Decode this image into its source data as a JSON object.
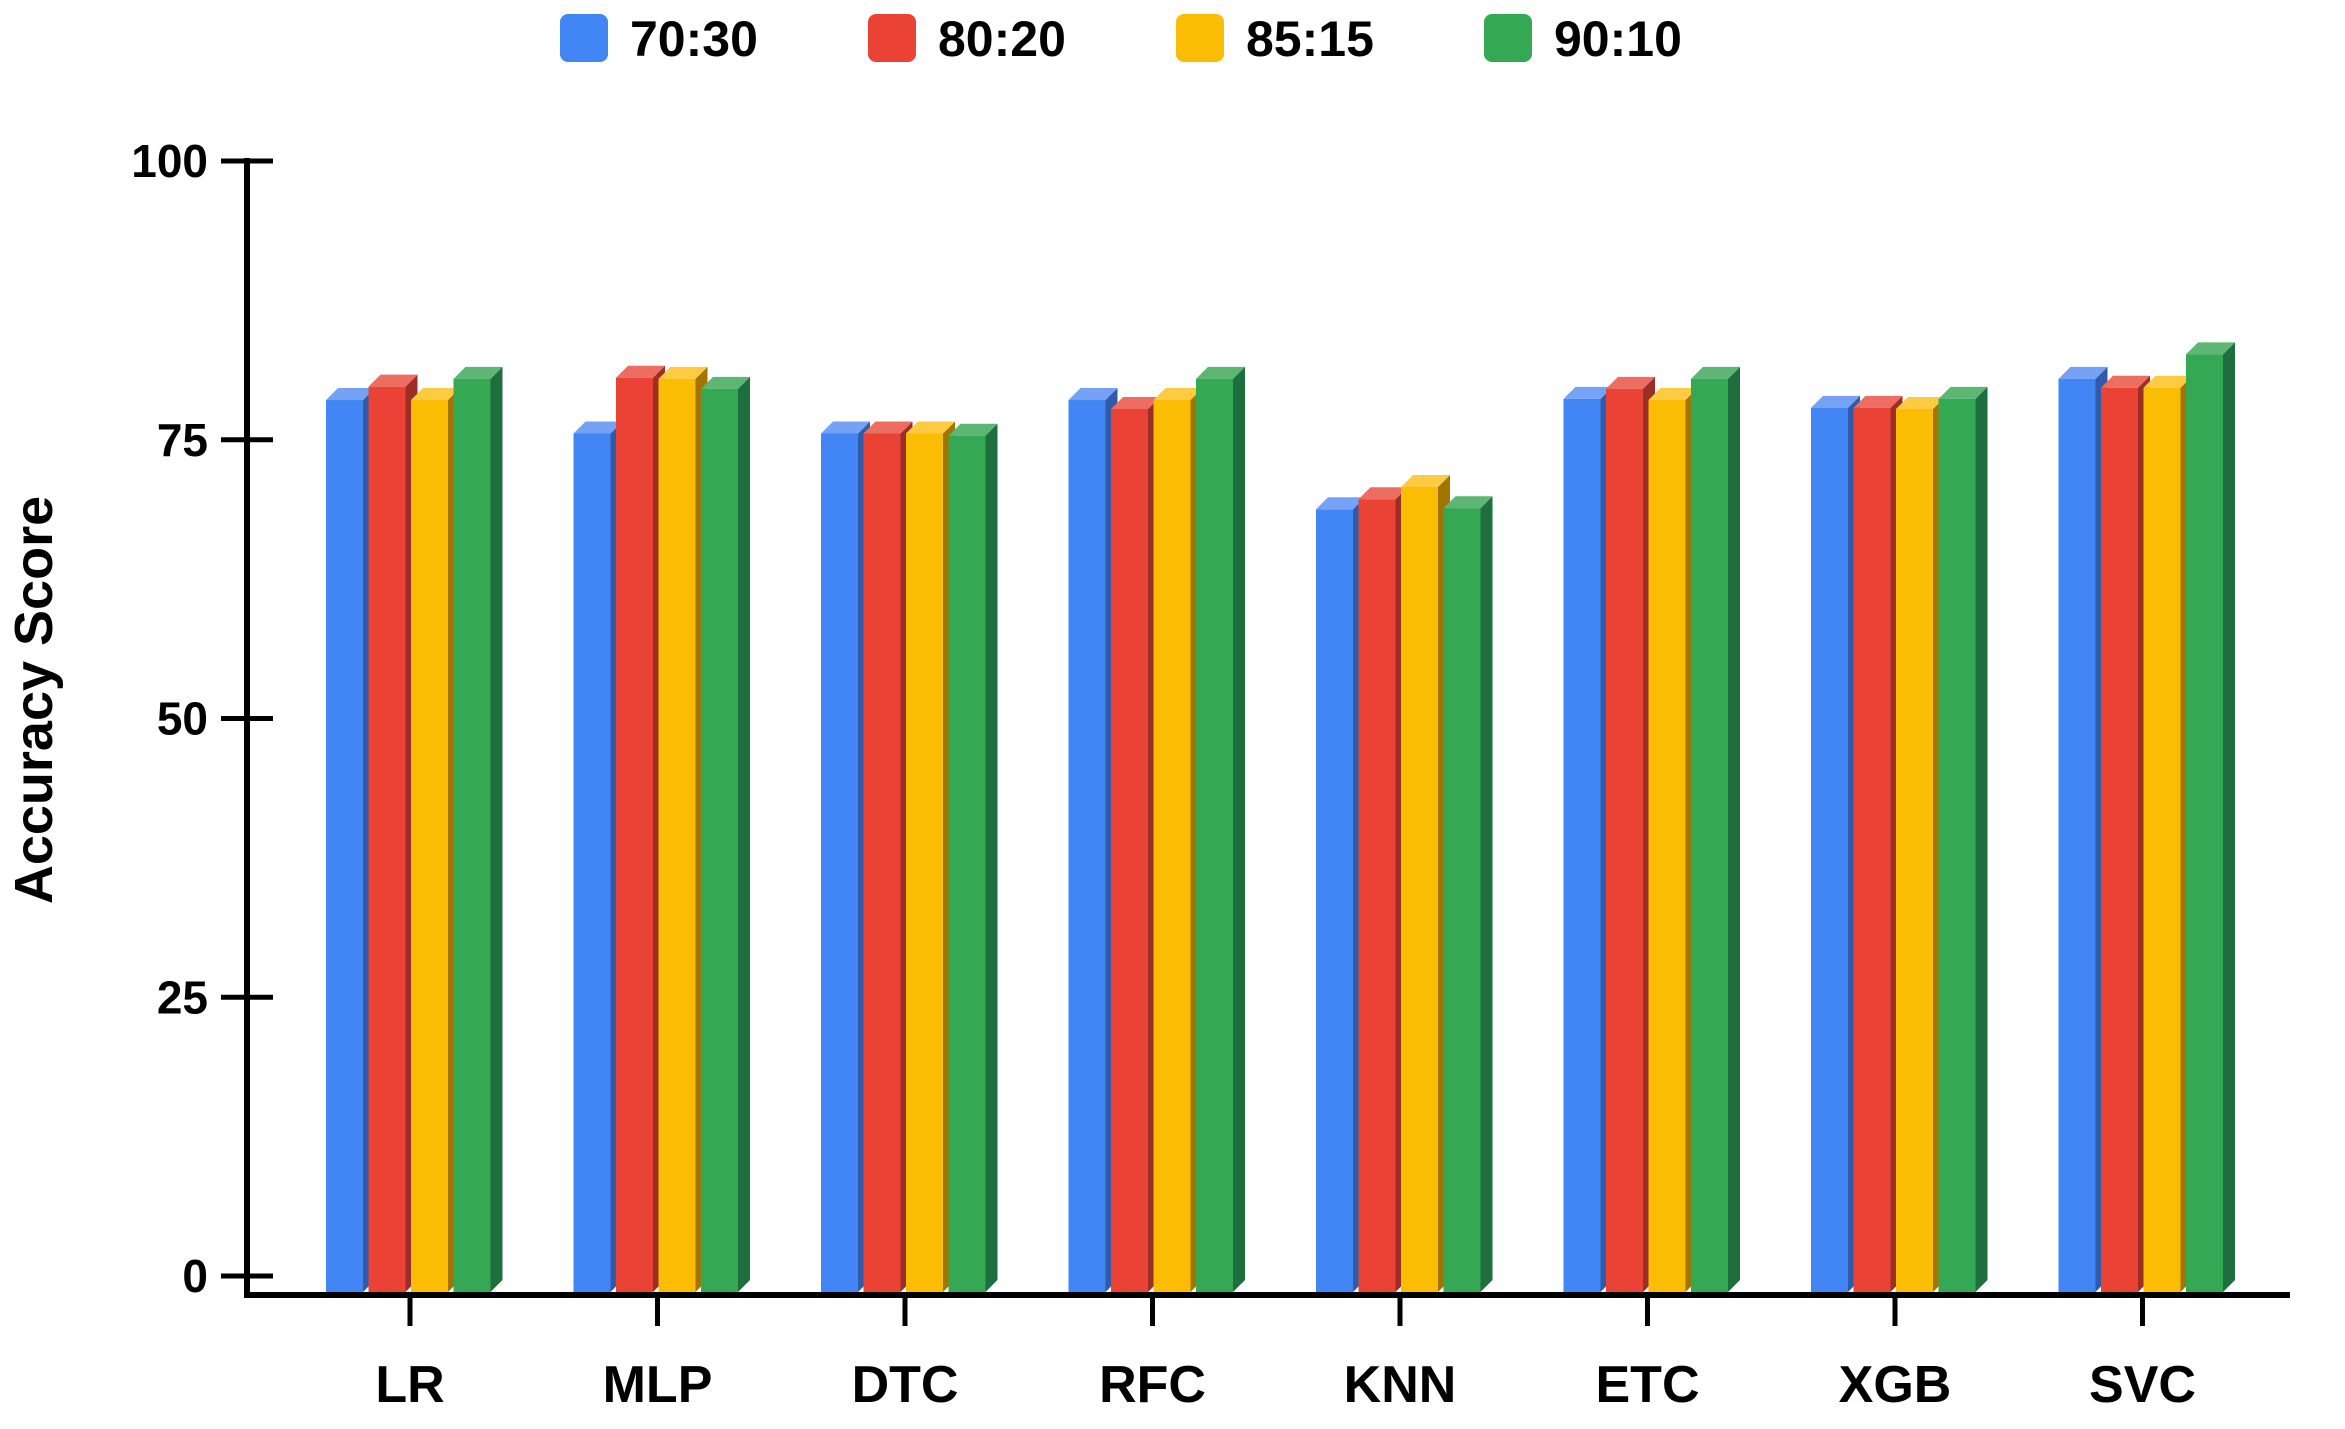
{
  "page": {
    "background": "#FFFFFF"
  },
  "chart_data": {
    "type": "bar",
    "style": "3d-grouped",
    "title": "",
    "xlabel": "",
    "ylabel": "Accuracy Score",
    "categories": [
      "LR",
      "MLP",
      "DTC",
      "RFC",
      "KNN",
      "ETC",
      "XGB",
      "SVC"
    ],
    "series": [
      {
        "name": "70:30",
        "color": "#4285F4",
        "color_top": "#76A2F6",
        "color_side": "#2F5BA8",
        "values": [
          79.1,
          76.1,
          76.1,
          79.1,
          69.3,
          79.2,
          78.4,
          81.0
        ]
      },
      {
        "name": "80:20",
        "color": "#EA4335",
        "color_top": "#ED6D63",
        "color_side": "#9B2F28",
        "values": [
          80.3,
          81.1,
          76.1,
          78.3,
          70.2,
          80.1,
          78.4,
          80.2
        ]
      },
      {
        "name": "85:15",
        "color": "#FBBC04",
        "color_top": "#FCCB41",
        "color_side": "#A27400",
        "values": [
          79.1,
          81.0,
          76.1,
          79.1,
          71.3,
          79.1,
          78.3,
          80.2
        ]
      },
      {
        "name": "90:10",
        "color": "#34A853",
        "color_top": "#5DB674",
        "color_side": "#1F6E3D",
        "values": [
          81.0,
          80.1,
          75.9,
          81.0,
          69.4,
          81.0,
          79.2,
          83.2
        ]
      }
    ],
    "ylim": [
      0,
      100
    ],
    "yticks": [
      0,
      25,
      50,
      75,
      100
    ],
    "legend_position": "top",
    "grid": false,
    "axis_color": "#000000",
    "text_color": "#000000"
  }
}
